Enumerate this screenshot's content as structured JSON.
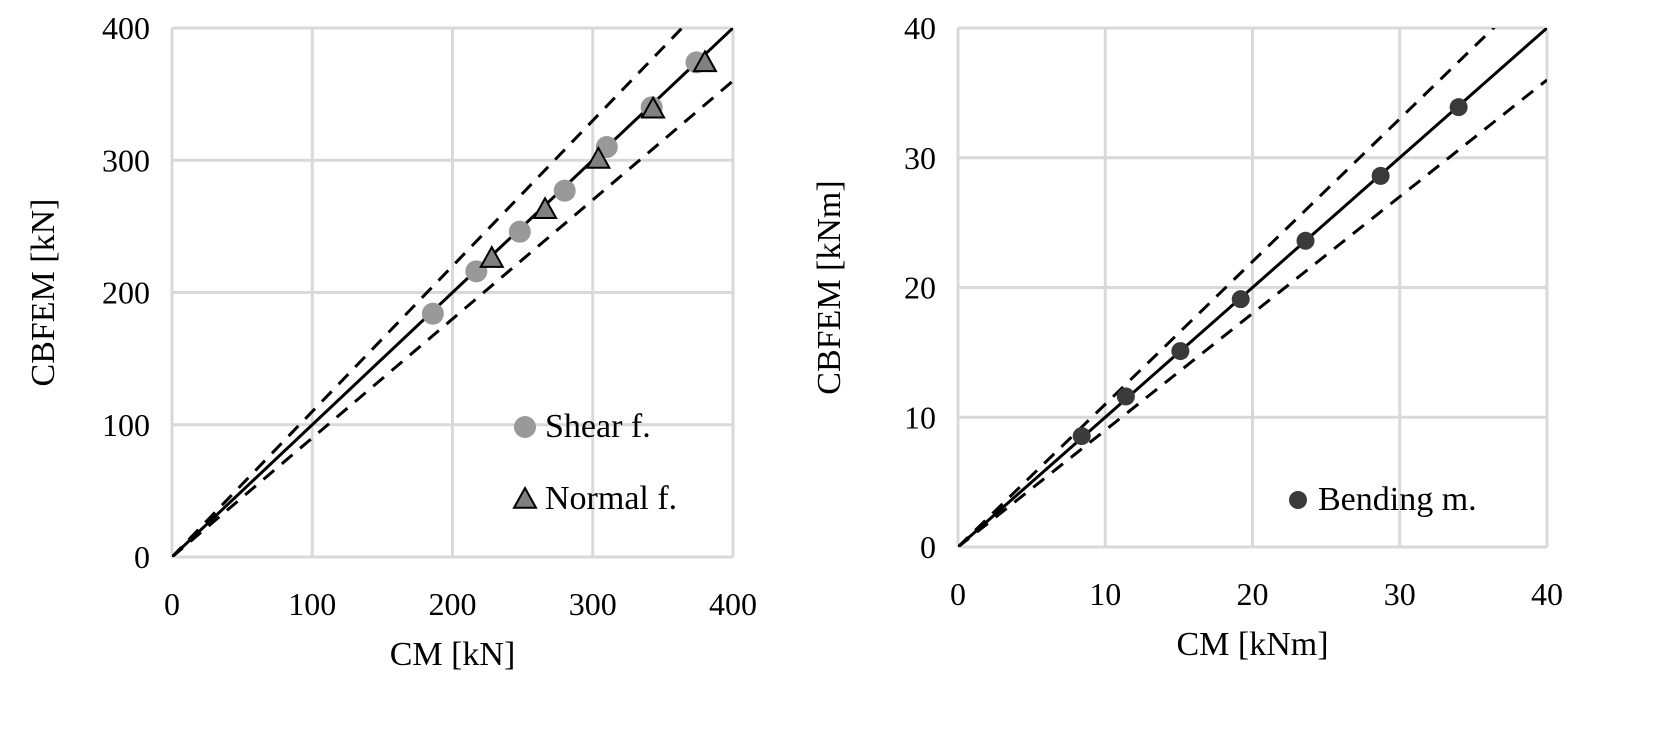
{
  "colors": {
    "grid": "#d9d9d9",
    "shear": "#999999",
    "normal": "#808080",
    "bending": "#3a3a3a",
    "line": "#000000"
  },
  "chart_data": [
    {
      "type": "scatter",
      "xlabel": "CM [kN]",
      "ylabel": "CBFEM [kN]",
      "xlim": [
        0,
        400
      ],
      "ylim": [
        0,
        400
      ],
      "xticks": [
        0,
        100,
        200,
        300,
        400
      ],
      "yticks": [
        0,
        100,
        200,
        300,
        400
      ],
      "grid": true,
      "legend_placement": "bottom-right",
      "reference_lines": [
        {
          "slope": 1.0,
          "style": "solid"
        },
        {
          "slope": 1.1,
          "style": "dashed"
        },
        {
          "slope": 0.9,
          "style": "dashed"
        }
      ],
      "series": [
        {
          "name": "Shear f.",
          "marker": "circle",
          "x": [
            186,
            217,
            248,
            280,
            310,
            342,
            374
          ],
          "y": [
            184,
            216,
            246,
            277,
            310,
            340,
            374
          ]
        },
        {
          "name": "Normal f.",
          "marker": "triangle",
          "x": [
            228,
            266,
            304,
            343,
            380
          ],
          "y": [
            226,
            263,
            301,
            339,
            374
          ]
        }
      ]
    },
    {
      "type": "scatter",
      "xlabel": "CM [kNm]",
      "ylabel": "CBFEM [kNm]",
      "xlim": [
        0,
        40
      ],
      "ylim": [
        0,
        40
      ],
      "xticks": [
        0,
        10,
        20,
        30,
        40
      ],
      "yticks": [
        0,
        10,
        20,
        30,
        40
      ],
      "grid": true,
      "legend_placement": "bottom-right",
      "reference_lines": [
        {
          "slope": 1.0,
          "style": "solid"
        },
        {
          "slope": 1.1,
          "style": "dashed"
        },
        {
          "slope": 0.9,
          "style": "dashed"
        }
      ],
      "series": [
        {
          "name": "Bending m.",
          "marker": "circle",
          "x": [
            8.4,
            11.4,
            15.1,
            19.2,
            23.6,
            28.7,
            34.0
          ],
          "y": [
            8.55,
            11.6,
            15.1,
            19.1,
            23.6,
            28.6,
            33.9
          ]
        }
      ]
    }
  ]
}
